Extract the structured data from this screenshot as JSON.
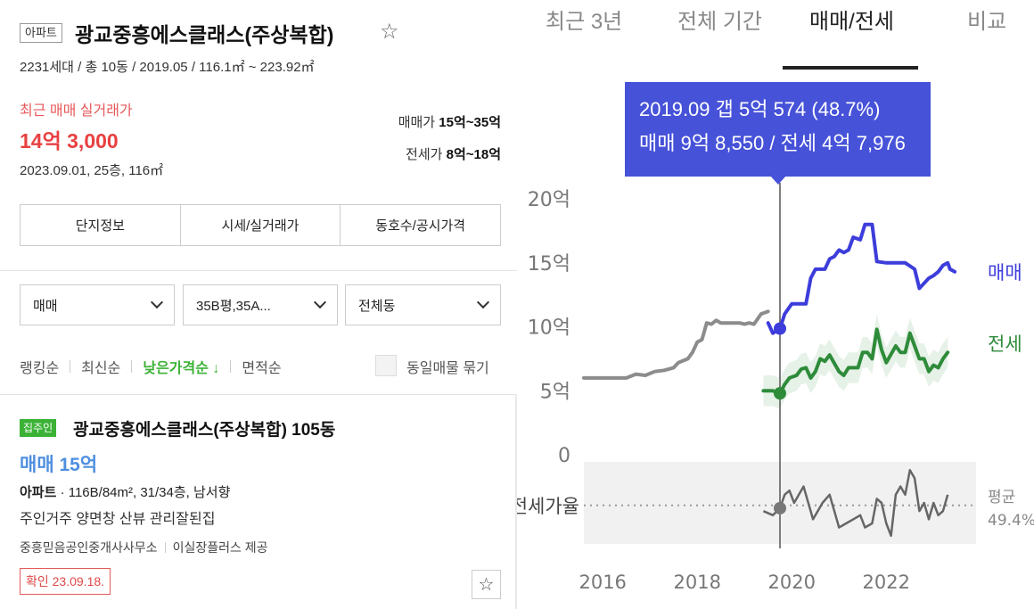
{
  "listing": {
    "type_badge": "아파트",
    "title": "광교중흥에스클래스(주상복합)",
    "meta": "2231세대 / 총 10동 / 2019.05 / 116.1㎡ ~ 223.92㎡",
    "recent_label": "최근 매매 실거래가",
    "recent_price": "14억 3,000",
    "recent_detail": "2023.09.01, 25층, 116㎡",
    "sale_range_label": "매매가",
    "sale_range_value": "15억~35억",
    "jeonse_range_label": "전세가",
    "jeonse_range_value": "8억~18억"
  },
  "tabs": [
    "단지정보",
    "시세/실거래가",
    "동호수/공시가격"
  ],
  "filters": [
    "매매",
    "35B평,35A...",
    "전체동"
  ],
  "sort": {
    "items": [
      "랭킹순",
      "최신순",
      "낮은가격순 ↓",
      "면적순"
    ],
    "active_index": 2,
    "group_label": "동일매물 묶기"
  },
  "item": {
    "badge": "집주인",
    "title": "광교중흥에스클래스(주상복합) 105동",
    "price": "매매 15억",
    "spec_type": "아파트",
    "spec_rest": " · 116B/84m², 31/34층, 남서향",
    "desc": "주인거주 양면창 산뷰 관리잘된집",
    "agent": "중흥믿음공인중개사사무소",
    "provider": "이실장플러스 제공",
    "confirm": "확인 23.09.18."
  },
  "chart_tabs": [
    "최근 3년",
    "전체 기간",
    "매매/전세",
    "비교"
  ],
  "chart_tab_active": 2,
  "tooltip": {
    "line1": "2019.09  갭 5억 574 (48.7%)",
    "line2": "매매 9억 8,550 / 전세 4억 7,976"
  },
  "colors": {
    "sale": "#3d3ddb",
    "jeonse": "#2e8b3a",
    "pre_sale": "#8c8c8c",
    "accent_green": "#3bb236",
    "price_red": "#e84040"
  },
  "chart_data": {
    "type": "line",
    "ylabel": "",
    "y_ticks": [
      "20억",
      "15억",
      "10억",
      "5억",
      "0"
    ],
    "y_tick_values": [
      20,
      15,
      10,
      5,
      0
    ],
    "ylim": [
      0,
      20
    ],
    "x_ticks": [
      "2016",
      "2018",
      "2020",
      "2022"
    ],
    "x_tick_values": [
      2016,
      2018,
      2020,
      2022
    ],
    "xlim": [
      2015.6,
      2023.9
    ],
    "cursor_x": 2019.75,
    "series": [
      {
        "name": "",
        "key": "pre_sale",
        "color": "#8c8c8c",
        "points": [
          [
            2015.6,
            6.0
          ],
          [
            2016.5,
            6.0
          ],
          [
            2016.7,
            6.3
          ],
          [
            2016.9,
            6.2
          ],
          [
            2017.1,
            6.5
          ],
          [
            2017.3,
            6.6
          ],
          [
            2017.5,
            6.8
          ],
          [
            2017.6,
            7.2
          ],
          [
            2017.8,
            7.5
          ],
          [
            2017.9,
            8.0
          ],
          [
            2018.0,
            8.8
          ],
          [
            2018.1,
            9.0
          ],
          [
            2018.2,
            10.3
          ],
          [
            2018.3,
            10.2
          ],
          [
            2018.4,
            10.5
          ],
          [
            2018.5,
            10.3
          ],
          [
            2018.7,
            10.3
          ],
          [
            2018.9,
            10.3
          ],
          [
            2019.0,
            10.2
          ],
          [
            2019.1,
            10.3
          ],
          [
            2019.2,
            10.2
          ],
          [
            2019.35,
            11.0
          ],
          [
            2019.5,
            11.2
          ]
        ]
      },
      {
        "name": "매매",
        "key": "sale",
        "color": "#3d3ddb",
        "points": [
          [
            2019.5,
            10.3
          ],
          [
            2019.6,
            9.5
          ],
          [
            2019.75,
            9.86
          ],
          [
            2019.85,
            11.0
          ],
          [
            2020.0,
            11.8
          ],
          [
            2020.3,
            11.8
          ],
          [
            2020.4,
            13.8
          ],
          [
            2020.5,
            14.5
          ],
          [
            2020.7,
            14.5
          ],
          [
            2020.8,
            15.3
          ],
          [
            2020.9,
            15.5
          ],
          [
            2021.0,
            16.0
          ],
          [
            2021.1,
            15.8
          ],
          [
            2021.2,
            16.0
          ],
          [
            2021.3,
            17.0
          ],
          [
            2021.45,
            16.8
          ],
          [
            2021.55,
            18.0
          ],
          [
            2021.7,
            18.0
          ],
          [
            2021.8,
            15.1
          ],
          [
            2022.0,
            15.0
          ],
          [
            2022.2,
            15.0
          ],
          [
            2022.4,
            15.0
          ],
          [
            2022.6,
            14.5
          ],
          [
            2022.7,
            13.0
          ],
          [
            2022.8,
            13.4
          ],
          [
            2022.9,
            13.8
          ],
          [
            2023.0,
            14.0
          ],
          [
            2023.1,
            14.3
          ],
          [
            2023.2,
            14.8
          ],
          [
            2023.3,
            15.0
          ],
          [
            2023.35,
            14.5
          ],
          [
            2023.45,
            14.3
          ]
        ]
      },
      {
        "name": "전세",
        "key": "jeonse",
        "color": "#2e8b3a",
        "points": [
          [
            2019.4,
            5.0
          ],
          [
            2019.6,
            5.0
          ],
          [
            2019.75,
            4.8
          ],
          [
            2019.85,
            5.5
          ],
          [
            2019.95,
            6.0
          ],
          [
            2020.1,
            6.2
          ],
          [
            2020.2,
            6.7
          ],
          [
            2020.3,
            6.8
          ],
          [
            2020.4,
            6.0
          ],
          [
            2020.5,
            6.5
          ],
          [
            2020.6,
            7.5
          ],
          [
            2020.7,
            7.3
          ],
          [
            2020.8,
            7.8
          ],
          [
            2021.0,
            6.5
          ],
          [
            2021.1,
            6.2
          ],
          [
            2021.2,
            6.8
          ],
          [
            2021.4,
            6.8
          ],
          [
            2021.5,
            8.0
          ],
          [
            2021.6,
            8.0
          ],
          [
            2021.7,
            7.5
          ],
          [
            2021.8,
            9.8
          ],
          [
            2021.9,
            8.2
          ],
          [
            2022.0,
            7.2
          ],
          [
            2022.2,
            8.5
          ],
          [
            2022.3,
            8.0
          ],
          [
            2022.4,
            8.0
          ],
          [
            2022.5,
            9.5
          ],
          [
            2022.6,
            8.5
          ],
          [
            2022.7,
            7.5
          ],
          [
            2022.8,
            7.5
          ],
          [
            2022.9,
            6.5
          ],
          [
            2023.0,
            7.0
          ],
          [
            2023.1,
            6.8
          ],
          [
            2023.2,
            7.5
          ],
          [
            2023.3,
            8.0
          ]
        ]
      }
    ],
    "series_labels": [
      "매매",
      "전세"
    ],
    "ratio": {
      "label": "전세가율",
      "avg_label": "평균",
      "avg_value": "49.4%",
      "avg": 49.4,
      "ylim": [
        40,
        60
      ],
      "points": [
        [
          2019.4,
          48
        ],
        [
          2019.6,
          47
        ],
        [
          2019.75,
          48.7
        ],
        [
          2019.85,
          52
        ],
        [
          2019.95,
          53
        ],
        [
          2020.05,
          50
        ],
        [
          2020.15,
          52
        ],
        [
          2020.25,
          54
        ],
        [
          2020.35,
          50
        ],
        [
          2020.45,
          46
        ],
        [
          2020.55,
          48
        ],
        [
          2020.65,
          50
        ],
        [
          2020.8,
          52
        ],
        [
          2020.9,
          48
        ],
        [
          2021.0,
          44
        ],
        [
          2021.15,
          45
        ],
        [
          2021.3,
          46
        ],
        [
          2021.45,
          47
        ],
        [
          2021.55,
          44
        ],
        [
          2021.7,
          45
        ],
        [
          2021.8,
          51
        ],
        [
          2021.9,
          50
        ],
        [
          2022.0,
          45
        ],
        [
          2022.1,
          42
        ],
        [
          2022.2,
          52
        ],
        [
          2022.3,
          54
        ],
        [
          2022.4,
          52
        ],
        [
          2022.5,
          58
        ],
        [
          2022.6,
          56
        ],
        [
          2022.7,
          48
        ],
        [
          2022.8,
          50
        ],
        [
          2022.9,
          46
        ],
        [
          2023.0,
          50
        ],
        [
          2023.1,
          47
        ],
        [
          2023.2,
          48
        ],
        [
          2023.3,
          52
        ]
      ]
    }
  }
}
